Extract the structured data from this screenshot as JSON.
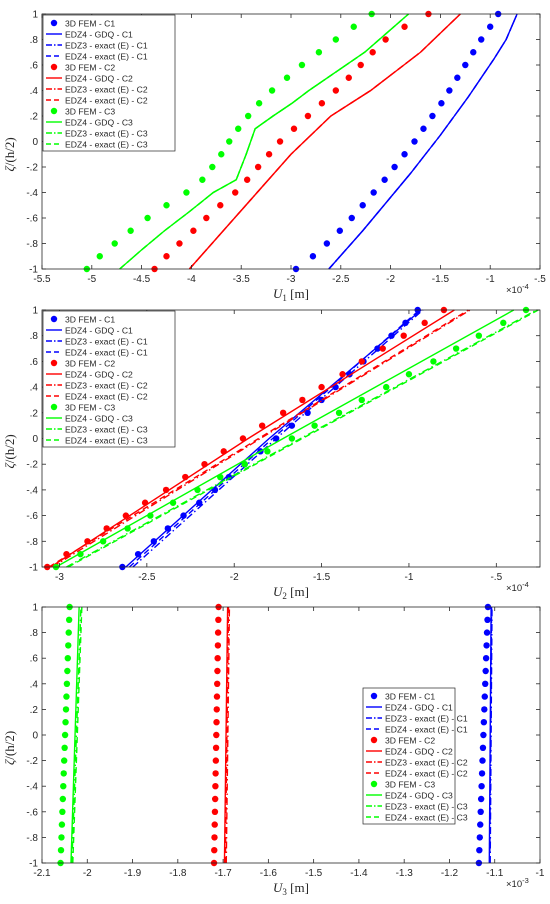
{
  "figure": {
    "y_label": {
      "symbol": "ζ",
      "text": "/(h/2)"
    },
    "legend_labels": [
      "3D FEM - C1",
      "EDZ4 - GDQ - C1",
      "EDZ3 - exact (E) - C1",
      "EDZ4 - exact (E) - C1",
      "3D FEM - C2",
      "EDZ4 - GDQ - C2",
      "EDZ3 - exact (E) - C2",
      "EDZ4 - exact (E) - C2",
      "3D FEM - C3",
      "EDZ4 - GDQ - C3",
      "EDZ3 - exact (E) - C3",
      "EDZ4 - exact (E) - C3"
    ],
    "colors": {
      "C1": "#0000ff",
      "C2": "#ff0000",
      "C3": "#00ff00"
    }
  },
  "chart_data": [
    {
      "type": "line",
      "xlabel": {
        "symbol": "U",
        "sub": "1",
        "unit": " [m]"
      },
      "ylabel": "ζ/(h/2)",
      "exponent": "×10",
      "exponent_power": "-4",
      "xlim": [
        -5.5,
        -0.5
      ],
      "ylim": [
        -1,
        1
      ],
      "x_ticks": [
        -5.5,
        -5,
        -4.5,
        -4,
        -3.5,
        -3,
        -2.5,
        -2,
        -1.5,
        -1,
        -0.5
      ],
      "y_ticks": [
        -1,
        -0.8,
        -0.6,
        -0.4,
        -0.2,
        0,
        0.2,
        0.4,
        0.6,
        0.8,
        1
      ],
      "legend_position": "top-left",
      "zeta": [
        -1,
        -0.9,
        -0.8,
        -0.7,
        -0.6,
        -0.5,
        -0.4,
        -0.3,
        -0.2,
        -0.1,
        0,
        0.1,
        0.2,
        0.3,
        0.4,
        0.5,
        0.6,
        0.7,
        0.8,
        0.9,
        1
      ],
      "series": [
        {
          "name": "3D FEM - C1",
          "color": "#0000ff",
          "style": "dots",
          "x": [
            -2.95,
            -2.78,
            -2.64,
            -2.51,
            -2.39,
            -2.28,
            -2.17,
            -2.06,
            -1.96,
            -1.86,
            -1.76,
            -1.67,
            -1.58,
            -1.49,
            -1.41,
            -1.33,
            -1.25,
            -1.17,
            -1.09,
            -1.0,
            -0.92
          ]
        },
        {
          "name": "EDZ4 - GDQ - C1",
          "color": "#0000ff",
          "style": "solid",
          "x": [
            -2.62,
            -2.45,
            -2.28,
            -2.12,
            -1.96,
            -1.8,
            -1.65,
            -1.5,
            -1.36,
            -1.22,
            -1.09,
            -0.96,
            -0.84,
            -0.73
          ]
        },
        {
          "name": "EDZ3 - exact (E) - C1",
          "color": "#0000ff",
          "style": "dashdot",
          "x": [
            -2.62,
            -2.45,
            -2.28,
            -2.12,
            -1.96,
            -1.8,
            -1.65,
            -1.5,
            -1.36,
            -1.22,
            -1.09,
            -0.96,
            -0.84,
            -0.73
          ]
        },
        {
          "name": "EDZ4 - exact (E) - C1",
          "color": "#0000ff",
          "style": "dashed",
          "x": [
            -2.62,
            -2.45,
            -2.28,
            -2.12,
            -1.96,
            -1.8,
            -1.65,
            -1.5,
            -1.36,
            -1.22,
            -1.09,
            -0.96,
            -0.84,
            -0.73
          ]
        },
        {
          "name": "3D FEM - C2",
          "color": "#ff0000",
          "style": "dots",
          "x": [
            -4.37,
            -4.25,
            -4.12,
            -3.98,
            -3.85,
            -3.71,
            -3.56,
            -3.44,
            -3.33,
            -3.22,
            -3.11,
            -2.97,
            -2.83,
            -2.69,
            -2.55,
            -2.42,
            -2.3,
            -2.18,
            -2.05,
            -1.86,
            -1.62
          ]
        },
        {
          "name": "EDZ4 - GDQ - C2",
          "color": "#ff0000",
          "style": "solid",
          "x": [
            -4.02,
            -3.85,
            -3.68,
            -3.51,
            -3.34,
            -3.17,
            -3.0,
            -2.8,
            -2.6,
            -2.4,
            -2.2,
            -1.7,
            -1.3
          ]
        },
        {
          "name": "EDZ3 - exact (E) - C2",
          "color": "#ff0000",
          "style": "dashdot",
          "x": [
            -4.02,
            -3.85,
            -3.68,
            -3.51,
            -3.34,
            -3.17,
            -3.0,
            -2.8,
            -2.6,
            -2.4,
            -2.2,
            -1.7,
            -1.3
          ]
        },
        {
          "name": "EDZ4 - exact (E) - C2",
          "color": "#ff0000",
          "style": "dashed",
          "x": [
            -4.02,
            -3.85,
            -3.68,
            -3.51,
            -3.34,
            -3.17,
            -3.0,
            -2.8,
            -2.6,
            -2.4,
            -2.2,
            -1.7,
            -1.3
          ]
        },
        {
          "name": "3D FEM - C3",
          "color": "#00ff00",
          "style": "dots",
          "x": [
            -5.05,
            -4.92,
            -4.77,
            -4.61,
            -4.44,
            -4.25,
            -4.05,
            -3.89,
            -3.79,
            -3.7,
            -3.62,
            -3.53,
            -3.43,
            -3.32,
            -3.19,
            -3.04,
            -2.89,
            -2.72,
            -2.55,
            -2.37,
            -2.19
          ]
        },
        {
          "name": "EDZ4 - GDQ - C3",
          "color": "#00ff00",
          "style": "solid",
          "x": [
            -4.72,
            -4.5,
            -4.27,
            -4.02,
            -3.78,
            -3.55,
            -3.45,
            -3.36,
            -3.18,
            -2.99,
            -2.82,
            -2.26,
            -1.82
          ]
        },
        {
          "name": "EDZ3 - exact (E) - C3",
          "color": "#00ff00",
          "style": "dashdot",
          "x": [
            -4.72,
            -4.5,
            -4.27,
            -4.02,
            -3.78,
            -3.55,
            -3.45,
            -3.36,
            -3.18,
            -2.99,
            -2.82,
            -2.26,
            -1.82
          ]
        },
        {
          "name": "EDZ4 - exact (E) - C3",
          "color": "#00ff00",
          "style": "dashed",
          "x": [
            -4.72,
            -4.5,
            -4.27,
            -4.02,
            -3.78,
            -3.55,
            -3.45,
            -3.36,
            -3.18,
            -2.99,
            -2.82,
            -2.26,
            -1.82
          ]
        }
      ],
      "line_zeta": {
        "C1": [
          -1,
          -0.85,
          -0.7,
          -0.55,
          -0.4,
          -0.25,
          -0.1,
          0.05,
          0.2,
          0.35,
          0.5,
          0.65,
          0.8,
          1
        ],
        "C2": [
          -1,
          -0.85,
          -0.7,
          -0.55,
          -0.4,
          -0.25,
          -0.1,
          0.05,
          0.2,
          0.3,
          0.4,
          0.7,
          1
        ],
        "C3": [
          -1,
          -0.85,
          -0.7,
          -0.55,
          -0.4,
          -0.3,
          -0.1,
          0.1,
          0.2,
          0.3,
          0.4,
          0.7,
          1
        ]
      }
    },
    {
      "type": "line",
      "xlabel": {
        "symbol": "U",
        "sub": "2",
        "unit": " [m]"
      },
      "ylabel": "ζ/(h/2)",
      "exponent": "×10",
      "exponent_power": "-4",
      "xlim": [
        -3.1,
        -0.25
      ],
      "ylim": [
        -1,
        1
      ],
      "x_ticks": [
        -3,
        -2.5,
        -2,
        -1.5,
        -1,
        -0.5
      ],
      "y_ticks": [
        -1,
        -0.8,
        -0.6,
        -0.4,
        -0.2,
        0,
        0.2,
        0.4,
        0.6,
        0.8,
        1
      ],
      "legend_position": "top-left",
      "zeta": [
        -1,
        -0.9,
        -0.8,
        -0.7,
        -0.6,
        -0.5,
        -0.4,
        -0.3,
        -0.2,
        -0.1,
        0,
        0.1,
        0.2,
        0.3,
        0.4,
        0.5,
        0.6,
        0.7,
        0.8,
        0.9,
        1
      ],
      "series": [
        {
          "name": "3D FEM - C1",
          "color": "#0000ff",
          "style": "dots",
          "x": [
            -2.64,
            -2.55,
            -2.46,
            -2.38,
            -2.29,
            -2.2,
            -2.11,
            -2.03,
            -1.94,
            -1.85,
            -1.76,
            -1.67,
            -1.58,
            -1.5,
            -1.42,
            -1.34,
            -1.26,
            -1.18,
            -1.1,
            -1.02,
            -0.95
          ]
        },
        {
          "name": "EDZ4 - GDQ - C1",
          "color": "#0000ff",
          "style": "solid",
          "x": [
            -2.62,
            -1.8,
            -0.93
          ],
          "zeta": [
            -1,
            0,
            1
          ]
        },
        {
          "name": "EDZ3 - exact (E) - C1",
          "color": "#0000ff",
          "style": "dashdot",
          "x": [
            -2.58,
            -1.76,
            -0.92
          ],
          "zeta": [
            -1,
            0,
            1
          ]
        },
        {
          "name": "EDZ4 - exact (E) - C1",
          "color": "#0000ff",
          "style": "dashed",
          "x": [
            -2.6,
            -1.78,
            -0.94
          ],
          "zeta": [
            -1,
            0,
            1
          ]
        },
        {
          "name": "3D FEM - C2",
          "color": "#ff0000",
          "style": "dots",
          "x": [
            -3.07,
            -2.96,
            -2.84,
            -2.73,
            -2.62,
            -2.51,
            -2.39,
            -2.28,
            -2.17,
            -2.06,
            -1.95,
            -1.84,
            -1.72,
            -1.61,
            -1.5,
            -1.38,
            -1.27,
            -1.15,
            -1.03,
            -0.91,
            -0.8
          ]
        },
        {
          "name": "EDZ4 - GDQ - C2",
          "color": "#ff0000",
          "style": "solid",
          "x": [
            -3.05,
            -1.92,
            -0.74
          ],
          "zeta": [
            -1,
            0,
            1
          ]
        },
        {
          "name": "EDZ3 - exact (E) - C2",
          "color": "#ff0000",
          "style": "dashdot",
          "x": [
            -3.04,
            -1.85,
            -0.65
          ],
          "zeta": [
            -1,
            0,
            1
          ]
        },
        {
          "name": "EDZ4 - exact (E) - C2",
          "color": "#ff0000",
          "style": "dashed",
          "x": [
            -3.06,
            -1.86,
            -0.66
          ],
          "zeta": [
            -1,
            0,
            1
          ]
        },
        {
          "name": "3D FEM - C3",
          "color": "#00ff00",
          "style": "dots",
          "x": [
            -3.02,
            -2.88,
            -2.75,
            -2.61,
            -2.48,
            -2.35,
            -2.21,
            -2.08,
            -1.94,
            -1.81,
            -1.67,
            -1.54,
            -1.4,
            -1.27,
            -1.13,
            -1.0,
            -0.86,
            -0.73,
            -0.6,
            -0.46,
            -0.33
          ]
        },
        {
          "name": "EDZ4 - GDQ - C3",
          "color": "#00ff00",
          "style": "solid",
          "x": [
            -3.02,
            -1.72,
            -0.4
          ],
          "zeta": [
            -1,
            0,
            1
          ]
        },
        {
          "name": "EDZ3 - exact (E) - C3",
          "color": "#00ff00",
          "style": "dashdot",
          "x": [
            -2.96,
            -1.62,
            -0.27
          ],
          "zeta": [
            -1,
            0,
            1
          ]
        },
        {
          "name": "EDZ4 - exact (E) - C3",
          "color": "#00ff00",
          "style": "dashed",
          "x": [
            -2.95,
            -1.61,
            -0.26
          ],
          "zeta": [
            -1,
            0,
            1
          ]
        }
      ]
    },
    {
      "type": "line",
      "xlabel": {
        "symbol": "U",
        "sub": "3",
        "unit": " [m]"
      },
      "ylabel": "ζ/(h/2)",
      "exponent": "×10",
      "exponent_power": "-3",
      "xlim": [
        -2.1,
        -1.0
      ],
      "ylim": [
        -1,
        1
      ],
      "x_ticks": [
        -2.1,
        -2,
        -1.9,
        -1.8,
        -1.7,
        -1.6,
        -1.5,
        -1.4,
        -1.3,
        -1.2,
        -1.1,
        -1
      ],
      "y_ticks": [
        -1,
        -0.8,
        -0.6,
        -0.4,
        -0.2,
        0,
        0.2,
        0.4,
        0.6,
        0.8,
        1
      ],
      "legend_position": "center-right",
      "zeta": [
        -1,
        -0.9,
        -0.8,
        -0.7,
        -0.6,
        -0.5,
        -0.4,
        -0.3,
        -0.2,
        -0.1,
        0,
        0.1,
        0.2,
        0.3,
        0.4,
        0.5,
        0.6,
        0.7,
        0.8,
        0.9,
        1
      ],
      "series": [
        {
          "name": "3D FEM - C1",
          "color": "#0000ff",
          "style": "dots",
          "x": [
            -1.135,
            -1.134,
            -1.133,
            -1.132,
            -1.131,
            -1.13,
            -1.129,
            -1.128,
            -1.127,
            -1.126,
            -1.125,
            -1.124,
            -1.123,
            -1.122,
            -1.121,
            -1.12,
            -1.119,
            -1.118,
            -1.117,
            -1.116,
            -1.115
          ]
        },
        {
          "name": "EDZ4 - GDQ - C1",
          "color": "#0000ff",
          "style": "solid",
          "x": [
            -1.112,
            -1.108
          ],
          "zeta": [
            -1,
            1
          ]
        },
        {
          "name": "EDZ3 - exact (E) - C1",
          "color": "#0000ff",
          "style": "dashdot",
          "x": [
            -1.11,
            -1.106
          ],
          "zeta": [
            -1,
            1
          ]
        },
        {
          "name": "EDZ4 - exact (E) - C1",
          "color": "#0000ff",
          "style": "dashed",
          "x": [
            -1.111,
            -1.107
          ],
          "zeta": [
            -1,
            1
          ]
        },
        {
          "name": "3D FEM - C2",
          "color": "#ff0000",
          "style": "dots",
          "x": [
            -1.72,
            -1.7195,
            -1.719,
            -1.7185,
            -1.718,
            -1.7175,
            -1.717,
            -1.7165,
            -1.716,
            -1.7155,
            -1.715,
            -1.7145,
            -1.714,
            -1.7135,
            -1.713,
            -1.7125,
            -1.712,
            -1.7115,
            -1.711,
            -1.7105,
            -1.71
          ]
        },
        {
          "name": "EDZ4 - GDQ - C2",
          "color": "#ff0000",
          "style": "solid",
          "x": [
            -1.697,
            -1.69
          ],
          "zeta": [
            -1,
            1
          ]
        },
        {
          "name": "EDZ3 - exact (E) - C2",
          "color": "#ff0000",
          "style": "dashdot",
          "x": [
            -1.693,
            -1.686
          ],
          "zeta": [
            -1,
            1
          ]
        },
        {
          "name": "EDZ4 - exact (E) - C2",
          "color": "#ff0000",
          "style": "dashed",
          "x": [
            -1.695,
            -1.688
          ],
          "zeta": [
            -1,
            1
          ]
        },
        {
          "name": "3D FEM - C3",
          "color": "#00ff00",
          "style": "dots",
          "x": [
            -2.059,
            -2.058,
            -2.057,
            -2.056,
            -2.055,
            -2.054,
            -2.053,
            -2.052,
            -2.051,
            -2.05,
            -2.049,
            -2.048,
            -2.047,
            -2.046,
            -2.045,
            -2.044,
            -2.043,
            -2.042,
            -2.041,
            -2.04,
            -2.039
          ]
        },
        {
          "name": "EDZ4 - GDQ - C3",
          "color": "#00ff00",
          "style": "solid",
          "x": [
            -2.036,
            -2.018
          ],
          "zeta": [
            -1,
            1
          ]
        },
        {
          "name": "EDZ3 - exact (E) - C3",
          "color": "#00ff00",
          "style": "dashdot",
          "x": [
            -2.034,
            -2.014
          ],
          "zeta": [
            -1,
            1
          ]
        },
        {
          "name": "EDZ4 - exact (E) - C3",
          "color": "#00ff00",
          "style": "dashed",
          "x": [
            -2.032,
            -2.012
          ],
          "zeta": [
            -1,
            1
          ]
        }
      ]
    }
  ]
}
